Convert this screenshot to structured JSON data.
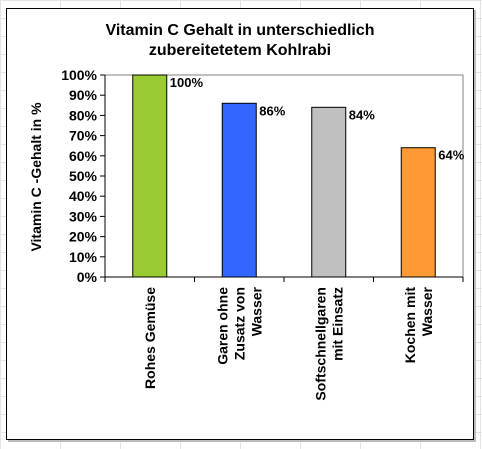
{
  "chart_data": {
    "type": "bar",
    "title": [
      "Vitamin C Gehalt in unterschiedlich",
      "zubereitetetem Kohlrabi"
    ],
    "ylabel": "Vitamin C -Gehalt in %",
    "xlabel": "",
    "ylim": [
      0,
      100
    ],
    "yticks": [
      0,
      10,
      20,
      30,
      40,
      50,
      60,
      70,
      80,
      90,
      100
    ],
    "tick_suffix": "%",
    "grid": false,
    "legend": "none",
    "categories": [
      [
        "Rohes Gemüse"
      ],
      [
        "Garen ohne",
        "Zusatz von",
        "Wasser"
      ],
      [
        "Softschnellgaren",
        "mit Einsatz"
      ],
      [
        "Kochen mit",
        "Wasser"
      ]
    ],
    "values": [
      100,
      86,
      84,
      64
    ],
    "data_labels": [
      "100%",
      "86%",
      "84%",
      "64%"
    ],
    "colors": [
      "#99cc33",
      "#3366ff",
      "#c0c0c0",
      "#ff9933"
    ],
    "plot_background": "#ffffff"
  }
}
